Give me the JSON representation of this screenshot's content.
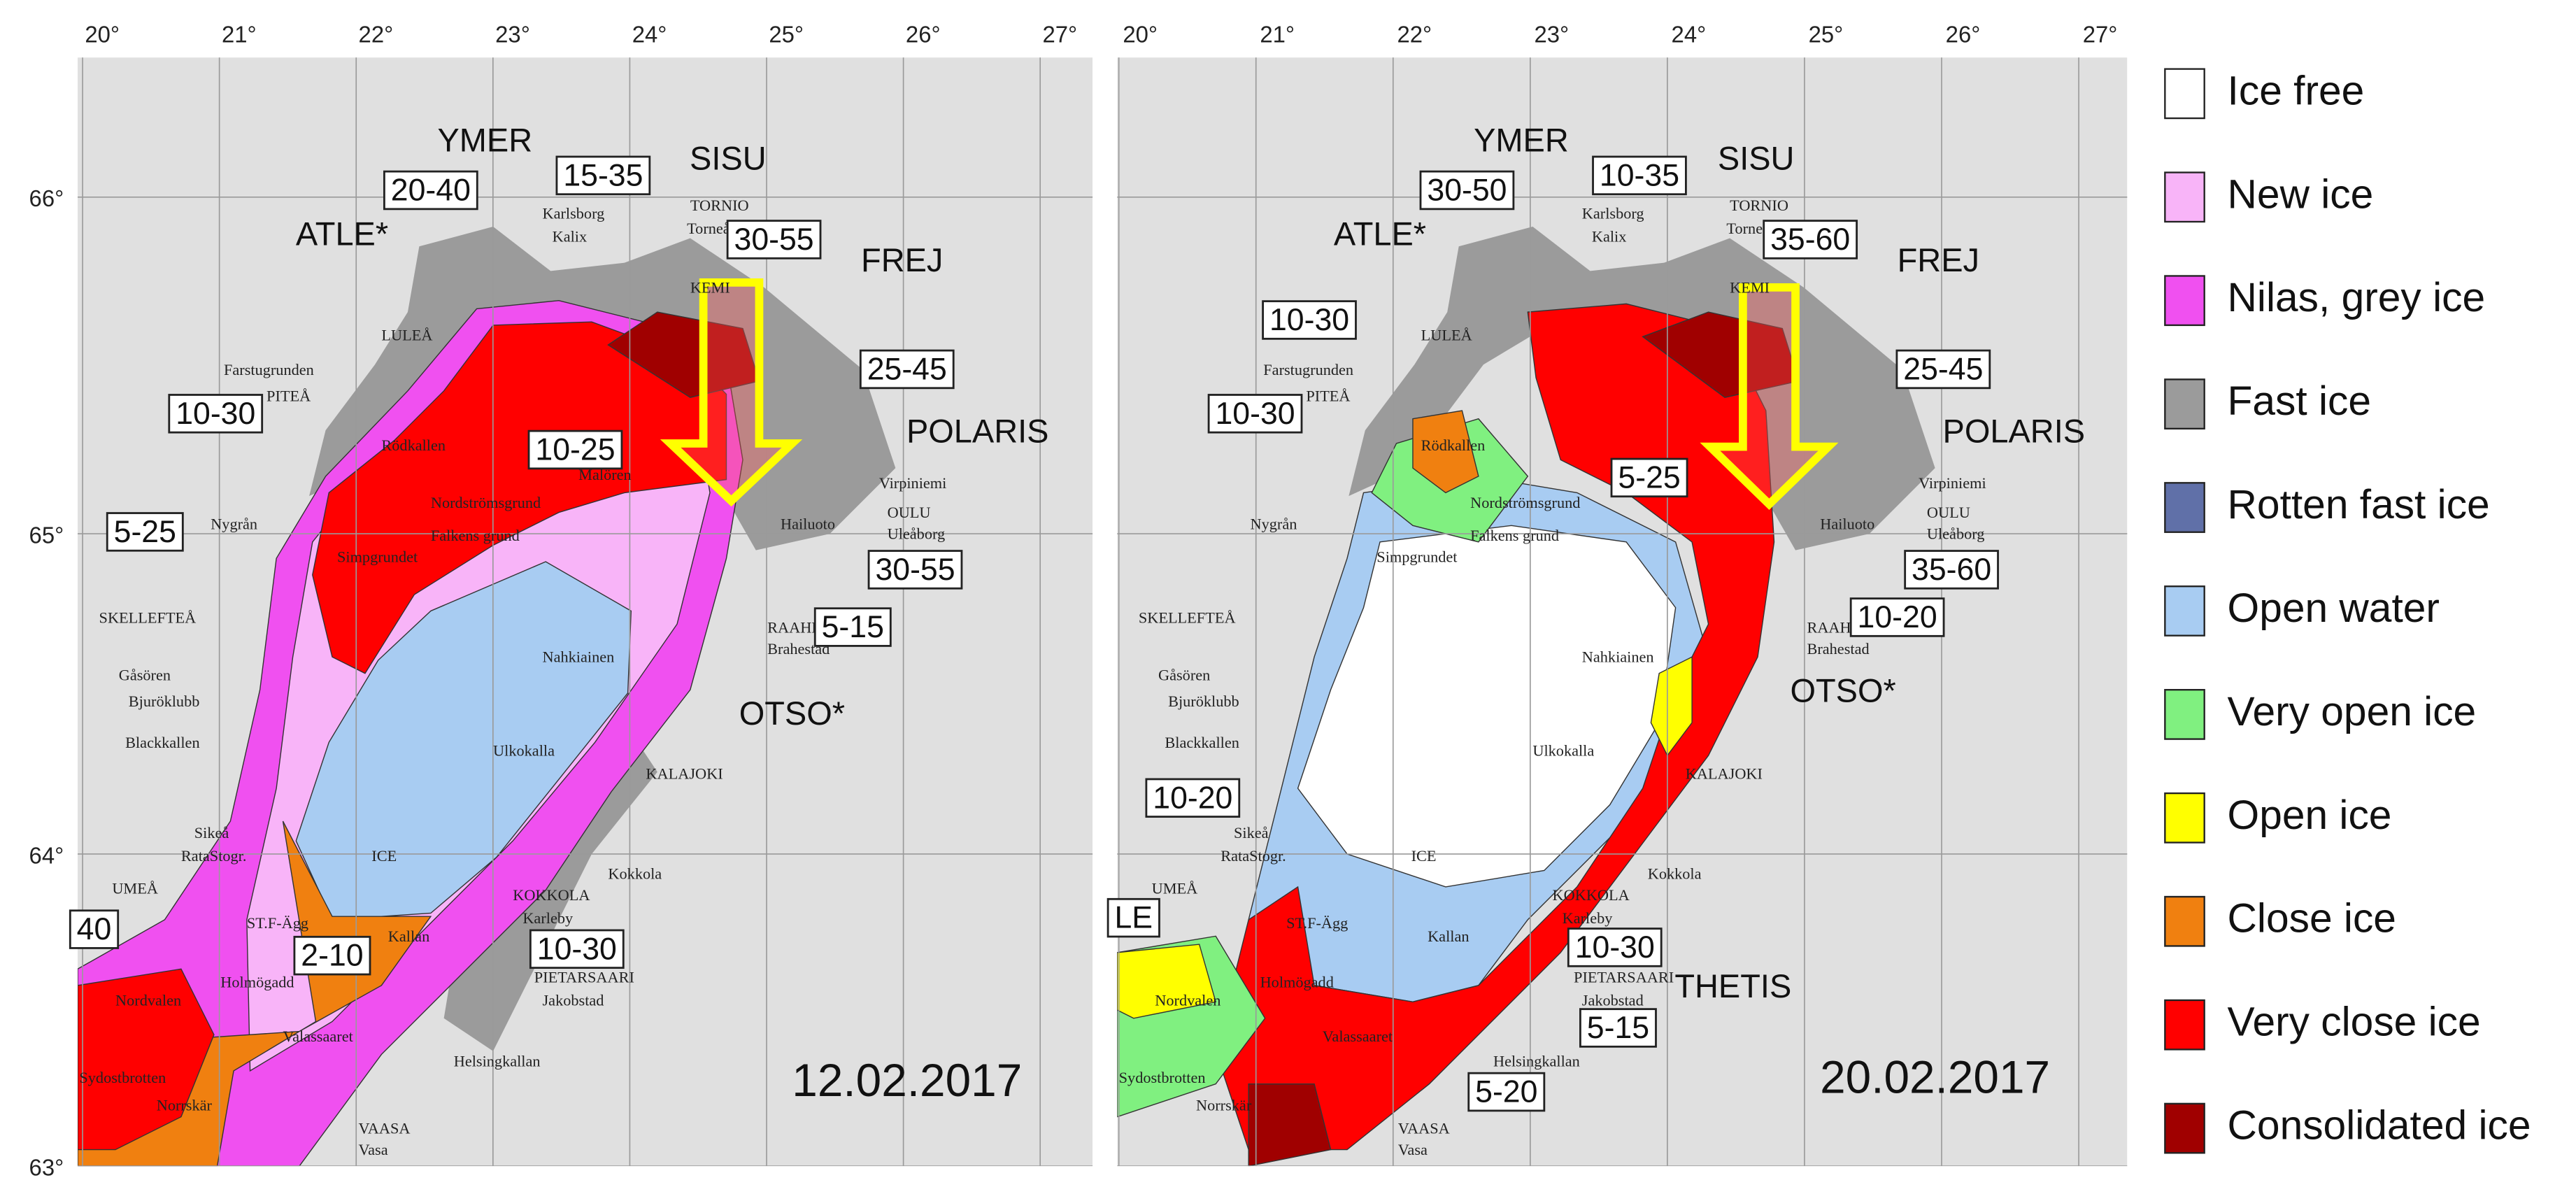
{
  "longitudes": [
    "20°",
    "21°",
    "22°",
    "23°",
    "24°",
    "25°",
    "26°",
    "27°"
  ],
  "latitudes": [
    "66°",
    "65°",
    "64°",
    "63°"
  ],
  "places": [
    "Karlsborg",
    "Kalix",
    "TORNIO",
    "Torneå",
    "LULEÅ",
    "KEMI",
    "Farstugrunden",
    "PITEÅ",
    "Rödkallen",
    "Malören",
    "Nordströmsgrund",
    "Falkens grund",
    "Virpiniemi",
    "Nygrån",
    "Simpgrundet",
    "Hailuoto",
    "OULU",
    "Uleåborg",
    "SKELLEFTEÅ",
    "RAAHE",
    "Brahestad",
    "Nahkiainen",
    "Gåsören",
    "Bjuröklubb",
    "Blackkallen",
    "Ulkokalla",
    "KALAJOKI",
    "Sikeå",
    "RataStogr.",
    "ICE",
    "UMEÅ",
    "Kokkola",
    "KOKKOLA",
    "Karleby",
    "ST.F-Ägg",
    "Kallan",
    "Holmögadd",
    "PIETARSAARI",
    "Jakobstad",
    "Nordvalen",
    "Valassaaret",
    "Helsingkallan",
    "Sydostbrotten",
    "Norrskär",
    "VAASA",
    "Vasa"
  ],
  "maps": [
    {
      "date": "12.02.2017",
      "ships": [
        "YMER",
        "SISU",
        "ATLE*",
        "FREJ",
        "POLARIS",
        "OTSO*"
      ],
      "thickness": [
        "20-40",
        "15-35",
        "30-55",
        "25-45",
        "10-30",
        "10-25",
        "5-25",
        "30-55",
        "5-15",
        "2-10",
        "10-30",
        "40"
      ]
    },
    {
      "date": "20.02.2017",
      "ships": [
        "YMER",
        "SISU",
        "ATLE*",
        "FREJ",
        "POLARIS",
        "OTSO*",
        "THETIS"
      ],
      "thickness": [
        "30-50",
        "10-35",
        "35-60",
        "25-45",
        "10-30",
        "10-30",
        "5-25",
        "35-60",
        "10-20",
        "10-20",
        "10-30",
        "5-15",
        "5-20",
        "LE"
      ]
    }
  ],
  "legend": [
    "Ice free",
    "New ice",
    "Nilas, grey ice",
    "Fast ice",
    "Rotten fast ice",
    "Open water",
    "Very open ice",
    "Open ice",
    "Close ice",
    "Very close ice",
    "Consolidated ice"
  ]
}
